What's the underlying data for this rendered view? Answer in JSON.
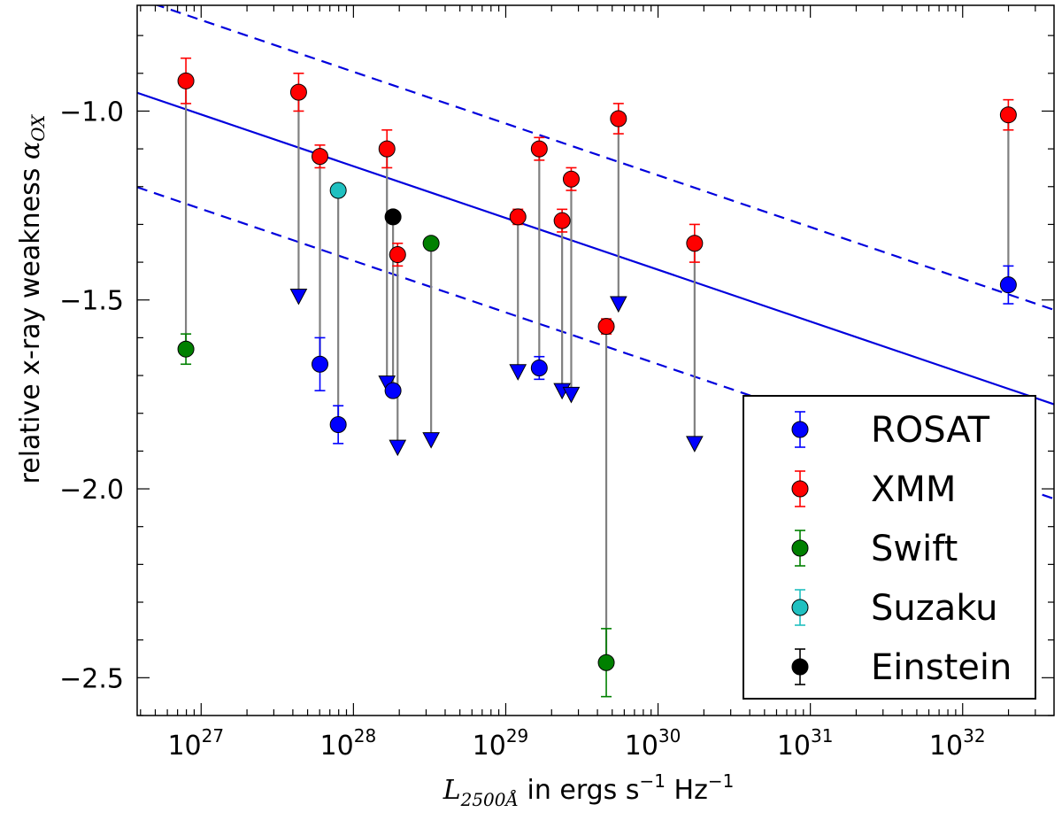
{
  "chart_data": {
    "type": "scatter",
    "title": "",
    "xlabel_main": "L",
    "xlabel_sub": "2500Å",
    "xlabel_rest": " in ergs s",
    "xlabel_exp1": "−1",
    "xlabel_hz": " Hz",
    "xlabel_exp2": "−1",
    "ylabel_text": "relative x-ray weakness ",
    "ylabel_symbol": "α",
    "ylabel_sub": "OX",
    "xscale": "log",
    "xlim_log10": [
      26.58,
      32.6
    ],
    "ylim": [
      -2.6,
      -0.72
    ],
    "x_ticks": [
      {
        "exp": 27,
        "base": "10",
        "sup": "27"
      },
      {
        "exp": 28,
        "base": "10",
        "sup": "28"
      },
      {
        "exp": 29,
        "base": "10",
        "sup": "29"
      },
      {
        "exp": 30,
        "base": "10",
        "sup": "30"
      },
      {
        "exp": 31,
        "base": "10",
        "sup": "31"
      },
      {
        "exp": 32,
        "base": "10",
        "sup": "32"
      }
    ],
    "y_ticks": [
      {
        "value": -1.0,
        "label": "−1.0"
      },
      {
        "value": -1.5,
        "label": "−1.5"
      },
      {
        "value": -2.0,
        "label": "−2.0"
      },
      {
        "value": -2.5,
        "label": "−2.5"
      }
    ],
    "colors": {
      "ROSAT": "#0000ff",
      "XMM": "#ff0000",
      "Swift": "#008000",
      "Suzaku": "#20c0c0",
      "Einstein": "#000000",
      "connector": "#808080",
      "fit_line": "#0000dd"
    },
    "fit_line": {
      "solid": {
        "slope": -0.137,
        "intercept": 2.69
      },
      "dashed_upper": {
        "slope": -0.137,
        "intercept": 2.94
      },
      "dashed_lower": {
        "slope": -0.137,
        "intercept": 2.44
      }
    },
    "connectors": [
      {
        "logx": 26.9,
        "y1": -0.92,
        "y2": -1.63
      },
      {
        "logx": 27.64,
        "y1": -0.95,
        "y2": -1.49
      },
      {
        "logx": 27.78,
        "y1": -1.12,
        "y2": -1.67
      },
      {
        "logx": 27.9,
        "y1": -1.21,
        "y2": -1.83
      },
      {
        "logx": 28.22,
        "y1": -1.1,
        "y2": -1.72
      },
      {
        "logx": 28.26,
        "y1": -1.28,
        "y2": -1.74
      },
      {
        "logx": 28.29,
        "y1": -1.38,
        "y2": -1.89
      },
      {
        "logx": 28.51,
        "y1": -1.35,
        "y2": -1.87
      },
      {
        "logx": 29.08,
        "y1": -1.28,
        "y2": -1.69
      },
      {
        "logx": 29.22,
        "y1": -1.1,
        "y2": -1.68
      },
      {
        "logx": 29.37,
        "y1": -1.29,
        "y2": -1.74
      },
      {
        "logx": 29.43,
        "y1": -1.18,
        "y2": -1.75
      },
      {
        "logx": 29.66,
        "y1": -1.57,
        "y2": -2.46
      },
      {
        "logx": 29.74,
        "y1": -1.02,
        "y2": -1.51
      },
      {
        "logx": 30.24,
        "y1": -1.35,
        "y2": -1.88
      },
      {
        "logx": 32.3,
        "y1": -1.01,
        "y2": -1.46
      }
    ],
    "series": [
      {
        "name": "ROSAT",
        "points": [
          {
            "logx": 27.78,
            "y": -1.67,
            "err": 0.07
          },
          {
            "logx": 27.9,
            "y": -1.83,
            "err": 0.05
          },
          {
            "logx": 28.26,
            "y": -1.74,
            "err": 0
          },
          {
            "logx": 29.22,
            "y": -1.68,
            "err": 0.03
          },
          {
            "logx": 32.3,
            "y": -1.46,
            "err": 0.05
          }
        ],
        "upper_limits": [
          {
            "logx": 27.64,
            "y": -1.49
          },
          {
            "logx": 28.22,
            "y": -1.72
          },
          {
            "logx": 28.29,
            "y": -1.89
          },
          {
            "logx": 28.51,
            "y": -1.87
          },
          {
            "logx": 29.08,
            "y": -1.69
          },
          {
            "logx": 29.37,
            "y": -1.74
          },
          {
            "logx": 29.43,
            "y": -1.75
          },
          {
            "logx": 29.74,
            "y": -1.51
          },
          {
            "logx": 30.24,
            "y": -1.88
          }
        ]
      },
      {
        "name": "XMM",
        "points": [
          {
            "logx": 26.9,
            "y": -0.92,
            "err": 0.06
          },
          {
            "logx": 27.64,
            "y": -0.95,
            "err": 0.05
          },
          {
            "logx": 27.78,
            "y": -1.12,
            "err": 0.03
          },
          {
            "logx": 28.22,
            "y": -1.1,
            "err": 0.05
          },
          {
            "logx": 28.29,
            "y": -1.38,
            "err": 0.03
          },
          {
            "logx": 29.08,
            "y": -1.28,
            "err": 0.02
          },
          {
            "logx": 29.22,
            "y": -1.1,
            "err": 0.03
          },
          {
            "logx": 29.37,
            "y": -1.29,
            "err": 0.03
          },
          {
            "logx": 29.43,
            "y": -1.18,
            "err": 0.03
          },
          {
            "logx": 29.66,
            "y": -1.57,
            "err": 0.02
          },
          {
            "logx": 29.74,
            "y": -1.02,
            "err": 0.04
          },
          {
            "logx": 30.24,
            "y": -1.35,
            "err": 0.05
          },
          {
            "logx": 32.3,
            "y": -1.01,
            "err": 0.04
          }
        ],
        "upper_limits": []
      },
      {
        "name": "Swift",
        "points": [
          {
            "logx": 26.9,
            "y": -1.63,
            "err": 0.04
          },
          {
            "logx": 28.51,
            "y": -1.35,
            "err": 0
          },
          {
            "logx": 29.66,
            "y": -2.46,
            "err": 0.09
          }
        ],
        "upper_limits": []
      },
      {
        "name": "Suzaku",
        "points": [
          {
            "logx": 27.9,
            "y": -1.21,
            "err": 0
          }
        ],
        "upper_limits": []
      },
      {
        "name": "Einstein",
        "points": [
          {
            "logx": 28.26,
            "y": -1.28,
            "err": 0
          }
        ],
        "upper_limits": []
      }
    ],
    "legend": {
      "placement": "lower-right",
      "entries": [
        "ROSAT",
        "XMM",
        "Swift",
        "Suzaku",
        "Einstein"
      ]
    }
  }
}
